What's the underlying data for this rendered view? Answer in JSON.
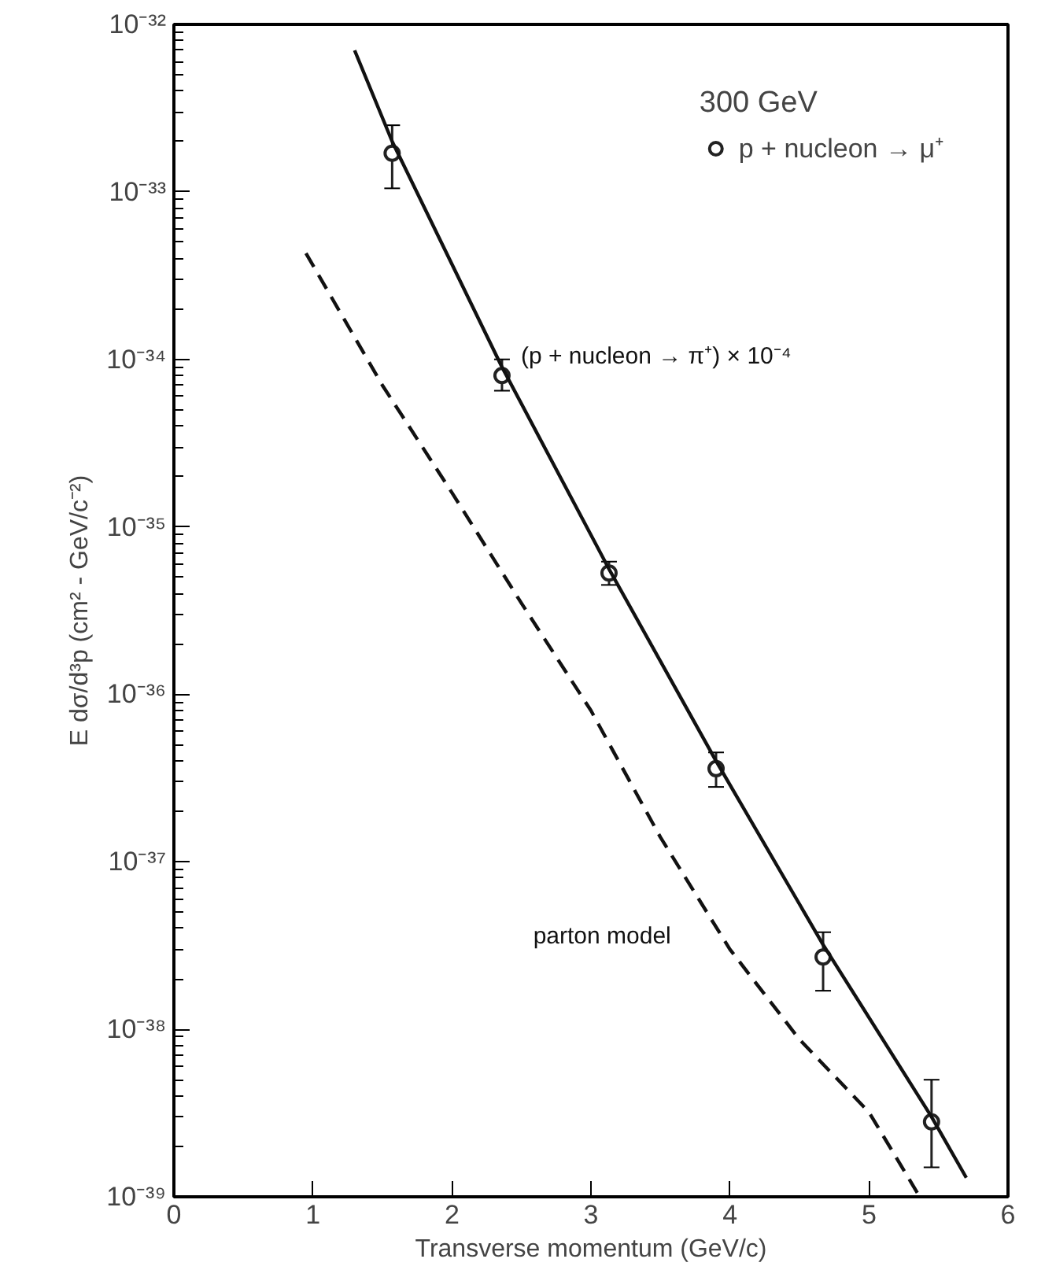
{
  "chart_data": {
    "type": "scatter",
    "xlabel": "Transverse momentum (GeV/c)",
    "ylabel": "E dσ/d³p (cm² - GeV/c⁻²)",
    "legend_title": "300 GeV",
    "legend": "top right",
    "log": "y",
    "grid": false,
    "xlim": [
      0,
      6
    ],
    "xticks": [
      0,
      1,
      2,
      3,
      4,
      5,
      6
    ],
    "ylim": [
      1e-39,
      1e-32
    ],
    "yticks": [
      {
        "value": 1e-39,
        "label": "10⁻³⁹"
      },
      {
        "value": 1e-38,
        "label": "10⁻³⁸"
      },
      {
        "value": 1e-37,
        "label": "10⁻³⁷"
      },
      {
        "value": 1e-36,
        "label": "10⁻³⁶"
      },
      {
        "value": 1e-35,
        "label": "10⁻³⁵"
      },
      {
        "value": 1e-34,
        "label": "10⁻³⁴"
      },
      {
        "value": 1e-33,
        "label": "10⁻³³"
      },
      {
        "value": 1e-32,
        "label": "10⁻³²"
      }
    ],
    "series": [
      {
        "name": "p + nucleon → μ⁺",
        "marker": "circle",
        "color": "#222222",
        "x": [
          1.57,
          2.36,
          3.13,
          3.9,
          4.67,
          5.45
        ],
        "values": [
          1.7e-33,
          8e-35,
          5.3e-36,
          3.6e-37,
          2.7e-38,
          2.8e-39
        ],
        "errors": [
          [
            1.05e-33,
            2.5e-33
          ],
          [
            6.5e-35,
            1e-34
          ],
          [
            4.5e-36,
            6.2e-36
          ],
          [
            2.8e-37,
            4.5e-37
          ],
          [
            1.7e-38,
            3.8e-38
          ],
          [
            1.5e-39,
            5e-39
          ]
        ]
      },
      {
        "name": "(p + nucleon → π⁺) × 10⁻⁴",
        "type": "line",
        "line_style": "solid",
        "color": "#111111",
        "x": [
          1.3,
          1.57,
          2.0,
          2.36,
          3.13,
          3.9,
          4.67,
          5.45,
          5.7
        ],
        "values": [
          7e-33,
          2e-33,
          3.7e-34,
          9e-35,
          5.6e-36,
          4e-37,
          3.2e-38,
          3e-39,
          1.3e-39
        ]
      },
      {
        "name": "parton model",
        "type": "line",
        "line_style": "dashed",
        "color": "#111111",
        "x": [
          0.95,
          1.5,
          2.0,
          2.5,
          3.0,
          3.5,
          4.0,
          4.5,
          5.0,
          5.35
        ],
        "values": [
          4.3e-34,
          7e-35,
          1.6e-35,
          3.5e-36,
          8e-37,
          1.4e-37,
          3e-38,
          8.7e-39,
          3.2e-39,
          1.05e-39
        ]
      }
    ]
  }
}
